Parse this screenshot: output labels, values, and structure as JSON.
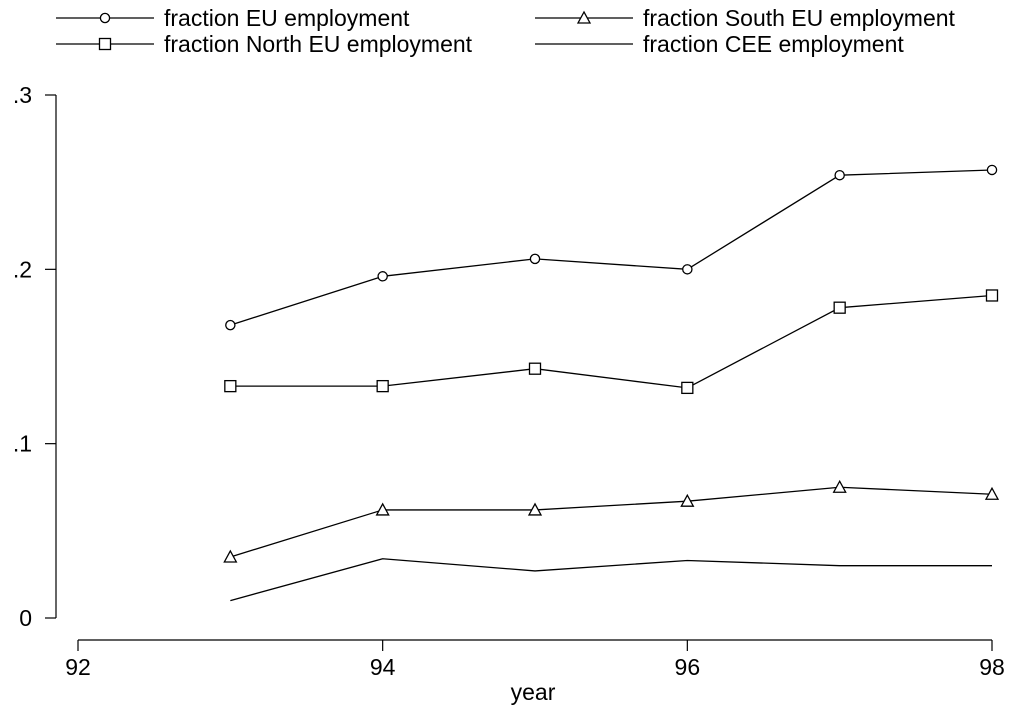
{
  "chart_data": {
    "type": "line",
    "x": [
      93,
      94,
      95,
      96,
      97,
      98
    ],
    "series": [
      {
        "name": "fraction EU employment",
        "marker": "circle",
        "values": [
          0.168,
          0.196,
          0.206,
          0.2,
          0.254,
          0.257
        ]
      },
      {
        "name": "fraction South EU employment",
        "marker": "triangle",
        "values": [
          0.035,
          0.062,
          0.062,
          0.067,
          0.075,
          0.071
        ]
      },
      {
        "name": "fraction North EU employment",
        "marker": "square",
        "values": [
          0.133,
          0.133,
          0.143,
          0.132,
          0.178,
          0.185
        ]
      },
      {
        "name": "fraction CEE employment",
        "marker": "none",
        "values": [
          0.01,
          0.034,
          0.027,
          0.033,
          0.03,
          0.03
        ]
      }
    ],
    "xlabel": "year",
    "ylabel": "",
    "xlim": [
      92,
      98
    ],
    "ylim": [
      0,
      0.3
    ],
    "xticks": [
      92,
      94,
      96,
      98
    ],
    "xtick_labels": [
      "92",
      "94",
      "96",
      "98"
    ],
    "yticks": [
      0,
      0.1,
      0.2,
      0.3
    ],
    "ytick_labels": [
      "0",
      ".1",
      ".2",
      ".3"
    ],
    "grid": false,
    "legend": "top",
    "line_color": "#000000"
  }
}
